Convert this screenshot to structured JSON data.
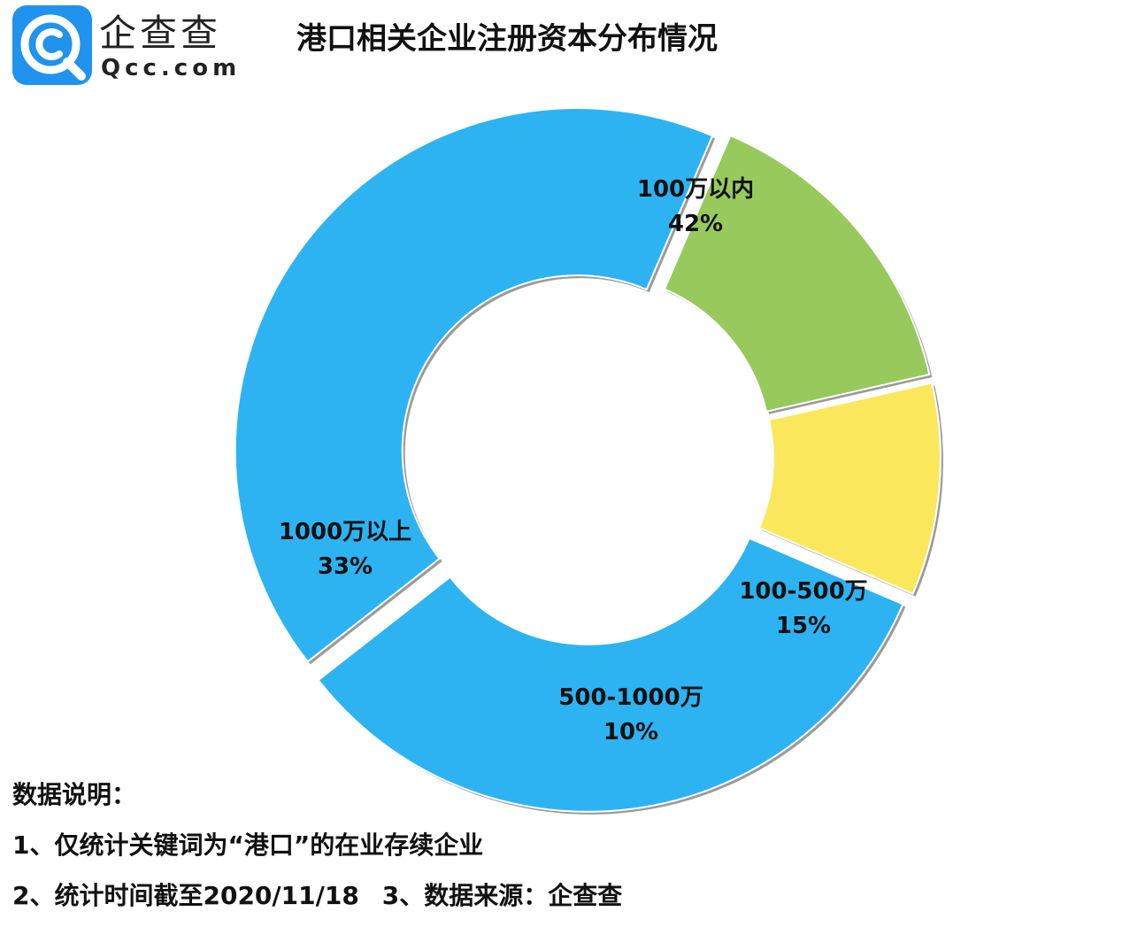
{
  "brand": {
    "name": "企查查",
    "url": "Qcc.com",
    "logo_color": "#1f93ee"
  },
  "title": "港口相关企业注册资本分布情况",
  "chart_data": {
    "type": "pie",
    "variant": "donut",
    "title": "港口相关企业注册资本分布情况",
    "slices": [
      {
        "label": "100万以内",
        "value": 42,
        "display": "42%",
        "color": "#2db3f2"
      },
      {
        "label": "100-500万",
        "value": 15,
        "display": "15%",
        "color": "#97c95c"
      },
      {
        "label": "500-1000万",
        "value": 10,
        "display": "10%",
        "color": "#fbe75c"
      },
      {
        "label": "1000万以上",
        "value": 33,
        "display": "33%",
        "color": "#2db3f2"
      }
    ]
  },
  "notes": {
    "heading": "数据说明：",
    "line1": "1、仅统计关键词为“港口”的在业存续企业",
    "line2a": "2、统计时间截至2020/11/18",
    "line2b": "3、数据来源：企查查"
  }
}
